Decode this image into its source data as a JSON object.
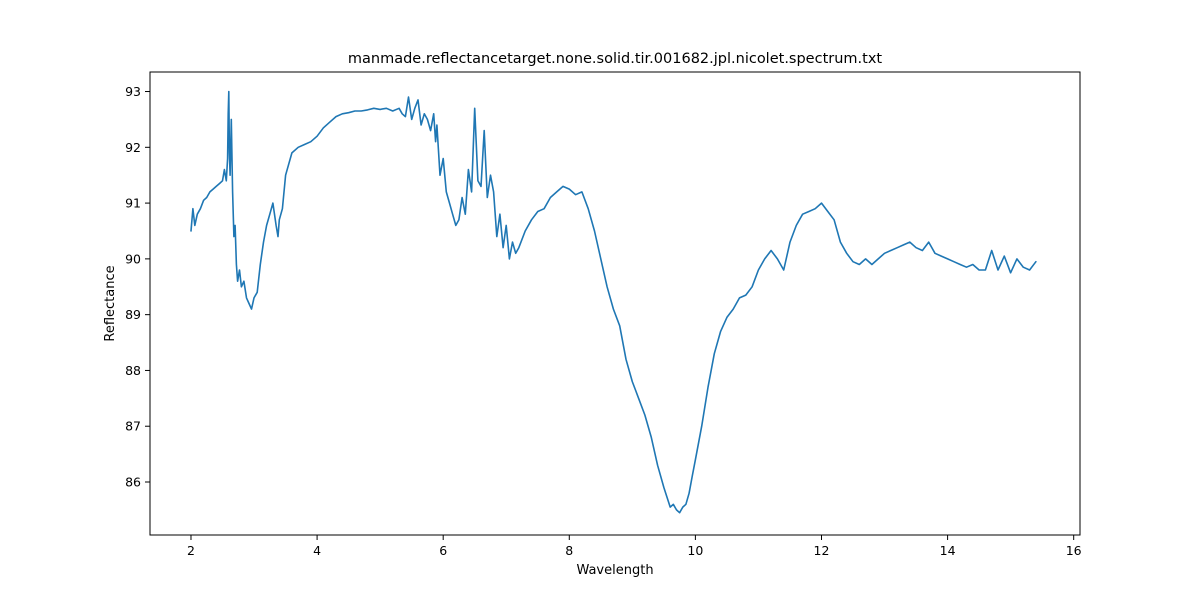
{
  "chart_data": {
    "type": "line",
    "title": "manmade.reflectancetarget.none.solid.tir.001682.jpl.nicolet.spectrum.txt",
    "xlabel": "Wavelength",
    "ylabel": "Reflectance",
    "xlim": [
      1.35,
      16.1
    ],
    "ylim": [
      85.05,
      93.35
    ],
    "xticks": [
      2,
      4,
      6,
      8,
      10,
      12,
      14,
      16
    ],
    "yticks": [
      86,
      87,
      88,
      89,
      90,
      91,
      92,
      93
    ],
    "grid": false,
    "series": [
      {
        "color": "#1f77b4",
        "x": [
          2.0,
          2.03,
          2.06,
          2.1,
          2.15,
          2.2,
          2.25,
          2.3,
          2.35,
          2.4,
          2.45,
          2.5,
          2.53,
          2.56,
          2.58,
          2.59,
          2.6,
          2.61,
          2.62,
          2.64,
          2.66,
          2.68,
          2.7,
          2.72,
          2.74,
          2.77,
          2.8,
          2.84,
          2.88,
          2.92,
          2.96,
          3.0,
          3.05,
          3.1,
          3.15,
          3.2,
          3.25,
          3.3,
          3.35,
          3.38,
          3.4,
          3.45,
          3.5,
          3.6,
          3.7,
          3.8,
          3.9,
          4.0,
          4.1,
          4.2,
          4.3,
          4.4,
          4.5,
          4.6,
          4.7,
          4.8,
          4.9,
          5.0,
          5.1,
          5.2,
          5.3,
          5.35,
          5.4,
          5.45,
          5.5,
          5.55,
          5.6,
          5.65,
          5.7,
          5.75,
          5.8,
          5.85,
          5.88,
          5.9,
          5.95,
          6.0,
          6.05,
          6.1,
          6.15,
          6.2,
          6.25,
          6.3,
          6.35,
          6.4,
          6.45,
          6.5,
          6.55,
          6.6,
          6.65,
          6.7,
          6.75,
          6.8,
          6.85,
          6.9,
          6.95,
          7.0,
          7.05,
          7.1,
          7.15,
          7.2,
          7.3,
          7.4,
          7.5,
          7.6,
          7.7,
          7.8,
          7.9,
          8.0,
          8.1,
          8.2,
          8.3,
          8.4,
          8.5,
          8.6,
          8.7,
          8.8,
          8.9,
          9.0,
          9.1,
          9.2,
          9.3,
          9.4,
          9.5,
          9.6,
          9.65,
          9.7,
          9.75,
          9.8,
          9.85,
          9.9,
          9.95,
          10.0,
          10.1,
          10.2,
          10.3,
          10.4,
          10.5,
          10.6,
          10.7,
          10.8,
          10.9,
          11.0,
          11.1,
          11.2,
          11.3,
          11.4,
          11.5,
          11.6,
          11.7,
          11.8,
          11.9,
          12.0,
          12.1,
          12.2,
          12.3,
          12.4,
          12.5,
          12.6,
          12.7,
          12.8,
          12.9,
          13.0,
          13.1,
          13.2,
          13.3,
          13.4,
          13.5,
          13.6,
          13.7,
          13.8,
          13.9,
          14.0,
          14.1,
          14.2,
          14.3,
          14.4,
          14.5,
          14.6,
          14.7,
          14.8,
          14.9,
          15.0,
          15.1,
          15.2,
          15.3,
          15.4
        ],
        "y": [
          90.5,
          90.9,
          90.6,
          90.8,
          90.9,
          91.05,
          91.1,
          91.2,
          91.25,
          91.3,
          91.35,
          91.4,
          91.6,
          91.4,
          91.8,
          92.6,
          93.0,
          91.9,
          91.5,
          92.5,
          91.2,
          90.4,
          90.6,
          89.9,
          89.6,
          89.8,
          89.5,
          89.6,
          89.3,
          89.2,
          89.1,
          89.3,
          89.4,
          89.9,
          90.3,
          90.6,
          90.8,
          91.0,
          90.6,
          90.4,
          90.7,
          90.9,
          91.5,
          91.9,
          92.0,
          92.05,
          92.1,
          92.2,
          92.35,
          92.45,
          92.55,
          92.6,
          92.62,
          92.65,
          92.65,
          92.67,
          92.7,
          92.68,
          92.7,
          92.65,
          92.7,
          92.6,
          92.55,
          92.9,
          92.5,
          92.7,
          92.85,
          92.4,
          92.6,
          92.5,
          92.3,
          92.6,
          92.1,
          92.4,
          91.5,
          91.8,
          91.2,
          91.0,
          90.8,
          90.6,
          90.7,
          91.1,
          90.8,
          91.6,
          91.2,
          92.7,
          91.4,
          91.3,
          92.3,
          91.1,
          91.5,
          91.2,
          90.4,
          90.8,
          90.2,
          90.6,
          90.0,
          90.3,
          90.1,
          90.2,
          90.5,
          90.7,
          90.85,
          90.9,
          91.1,
          91.2,
          91.3,
          91.25,
          91.15,
          91.2,
          90.9,
          90.5,
          90.0,
          89.5,
          89.1,
          88.8,
          88.2,
          87.8,
          87.5,
          87.2,
          86.8,
          86.3,
          85.9,
          85.55,
          85.6,
          85.5,
          85.45,
          85.55,
          85.6,
          85.8,
          86.1,
          86.4,
          87.0,
          87.7,
          88.3,
          88.7,
          88.95,
          89.1,
          89.3,
          89.35,
          89.5,
          89.8,
          90.0,
          90.15,
          90.0,
          89.8,
          90.3,
          90.6,
          90.8,
          90.85,
          90.9,
          91.0,
          90.85,
          90.7,
          90.3,
          90.1,
          89.95,
          89.9,
          90.0,
          89.9,
          90.0,
          90.1,
          90.15,
          90.2,
          90.25,
          90.3,
          90.2,
          90.15,
          90.3,
          90.1,
          90.05,
          90.0,
          89.95,
          89.9,
          89.85,
          89.9,
          89.8,
          89.8,
          90.15,
          89.8,
          90.05,
          89.75,
          90.0,
          89.85,
          89.8,
          89.95
        ]
      }
    ]
  }
}
